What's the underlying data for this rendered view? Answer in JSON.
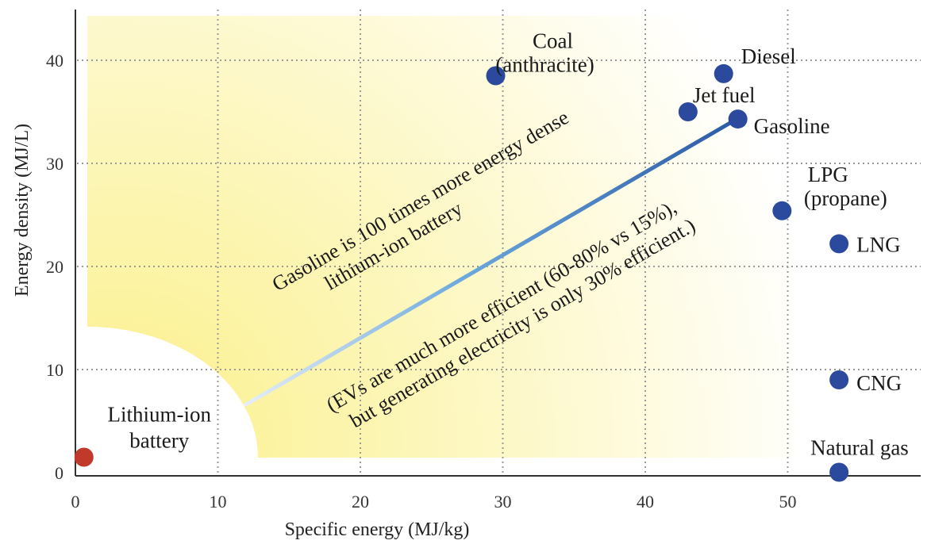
{
  "chart_data": {
    "type": "scatter",
    "xlabel": "Specific energy (MJ/kg)",
    "ylabel": "Energy density (MJ/L)",
    "xlim": [
      0,
      58
    ],
    "ylim": [
      0,
      45
    ],
    "x_ticks": [
      "0",
      "10",
      "20",
      "30",
      "40",
      "50"
    ],
    "y_ticks": [
      "0",
      "10",
      "20",
      "30",
      "40"
    ],
    "grid": true,
    "points": [
      {
        "label_lines": [
          "Lithium-ion",
          "battery"
        ],
        "x": 0.6,
        "y": 1.5,
        "color": "#c0392b"
      },
      {
        "label_lines": [
          "Coal",
          "(anthracite)"
        ],
        "x": 29.5,
        "y": 38.5,
        "color": "#2b4a9e"
      },
      {
        "label_lines": [
          "Diesel"
        ],
        "x": 45.5,
        "y": 38.7,
        "color": "#2b4a9e"
      },
      {
        "label_lines": [
          "Jet fuel"
        ],
        "x": 43,
        "y": 35,
        "color": "#2b4a9e"
      },
      {
        "label_lines": [
          "Gasoline"
        ],
        "x": 46.5,
        "y": 34.3,
        "color": "#2b4a9e"
      },
      {
        "label_lines": [
          "LPG",
          "(propane)"
        ],
        "x": 49.6,
        "y": 25.4,
        "color": "#2b4a9e"
      },
      {
        "label_lines": [
          "LNG"
        ],
        "x": 53.6,
        "y": 22.2,
        "color": "#2b4a9e"
      },
      {
        "label_lines": [
          "CNG"
        ],
        "x": 53.6,
        "y": 9,
        "color": "#2b4a9e"
      },
      {
        "label_lines": [
          "Natural gas"
        ],
        "x": 53.6,
        "y": 0.04,
        "color": "#2b4a9e"
      }
    ],
    "trend_line": {
      "from": [
        12.2,
        6.7
      ],
      "to": [
        46.5,
        34.3
      ]
    },
    "annotations": [
      {
        "lines": [
          "Gasoline is 100 times more energy dense",
          "lithium-ion battery"
        ]
      },
      {
        "lines": [
          "(EVs are much more efficient (60-80% vs 15%),",
          "but generating electricity is only 30% efficient.)"
        ]
      }
    ]
  }
}
